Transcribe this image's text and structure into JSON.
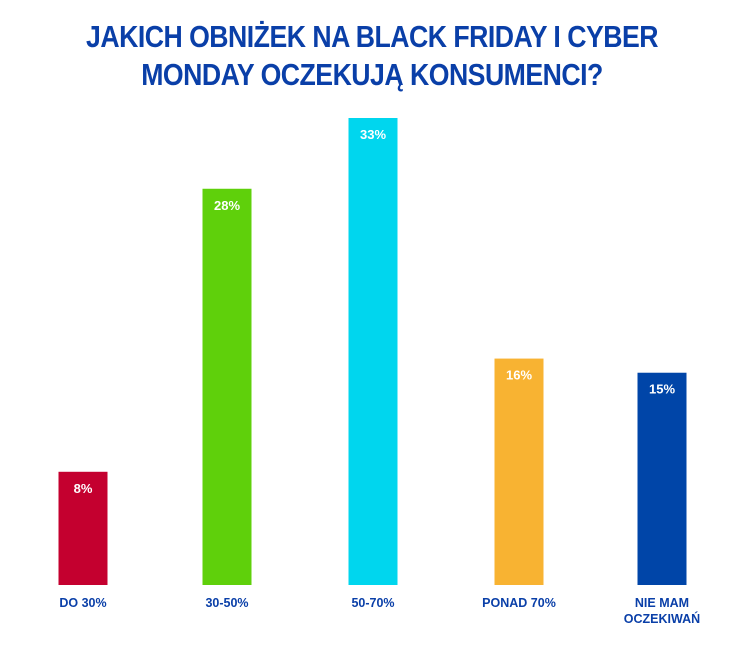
{
  "chart_data": {
    "type": "bar",
    "title": "JAKICH OBNIŻEK NA BLACK FRIDAY I CYBER MONDAY OCZEKUJĄ KONSUMENCI?",
    "categories": [
      "DO 30%",
      "30-50%",
      "50-70%",
      "PONAD 70%",
      "NIE MAM OCZEKIWAŃ"
    ],
    "values": [
      8,
      28,
      33,
      16,
      15
    ],
    "data_labels": [
      "8%",
      "28%",
      "33%",
      "16%",
      "15%"
    ],
    "colors": [
      "#c4002f",
      "#5fd00b",
      "#00d6ee",
      "#f8b332",
      "#0045a8"
    ],
    "ylim": [
      0,
      33
    ],
    "grid": false,
    "legend": "none"
  }
}
